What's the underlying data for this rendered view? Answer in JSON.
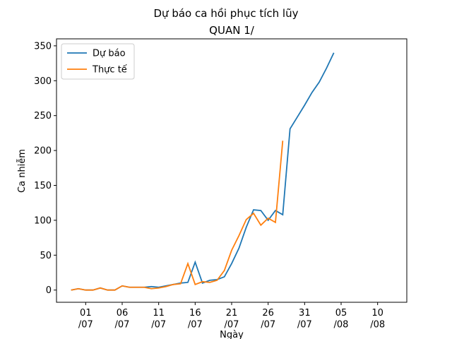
{
  "chart_data": {
    "type": "line",
    "title": "Dự báo ca hồi phục tích lũy",
    "subtitle": "QUAN 1/",
    "xlabel": "Ngày",
    "ylabel": "Ca nhiễm",
    "legend": "upper left",
    "xlim": [
      "27/06",
      "14/08"
    ],
    "ylim": [
      -17.5,
      360
    ],
    "yticks": [
      0,
      50,
      100,
      150,
      200,
      250,
      300,
      350
    ],
    "xticks": [
      {
        "value": "01/07",
        "label": "01\n/07"
      },
      {
        "value": "06/07",
        "label": "06\n/07"
      },
      {
        "value": "11/07",
        "label": "11\n/07"
      },
      {
        "value": "16/07",
        "label": "16\n/07"
      },
      {
        "value": "21/07",
        "label": "21\n/07"
      },
      {
        "value": "26/07",
        "label": "26\n/07"
      },
      {
        "value": "31/07",
        "label": "31\n/07"
      },
      {
        "value": "05/08",
        "label": "05\n/08"
      },
      {
        "value": "10/08",
        "label": "10\n/08"
      }
    ],
    "series": [
      {
        "name": "Dự báo",
        "color": "#1f77b4",
        "x": [
          "29/06",
          "30/06",
          "01/07",
          "02/07",
          "03/07",
          "04/07",
          "05/07",
          "06/07",
          "07/07",
          "08/07",
          "09/07",
          "10/07",
          "11/07",
          "12/07",
          "13/07",
          "14/07",
          "15/07",
          "16/07",
          "17/07",
          "18/07",
          "19/07",
          "20/07",
          "21/07",
          "22/07",
          "23/07",
          "24/07",
          "25/07",
          "26/07",
          "27/07",
          "28/07",
          "29/07",
          "30/07",
          "31/07",
          "01/08",
          "02/08",
          "03/08",
          "04/08"
        ],
        "values": [
          0,
          2,
          0,
          0,
          3,
          0,
          0,
          6,
          4,
          4,
          4,
          5,
          4,
          6,
          8,
          10,
          11,
          40,
          10,
          14,
          15,
          19,
          38,
          60,
          90,
          115,
          114,
          100,
          114,
          108,
          231,
          248,
          265,
          283,
          298,
          318,
          340
        ]
      },
      {
        "name": "Thực tế",
        "color": "#ff7f0e",
        "x": [
          "29/06",
          "30/06",
          "01/07",
          "02/07",
          "03/07",
          "04/07",
          "05/07",
          "06/07",
          "07/07",
          "08/07",
          "09/07",
          "10/07",
          "11/07",
          "12/07",
          "13/07",
          "14/07",
          "15/07",
          "16/07",
          "17/07",
          "18/07",
          "19/07",
          "20/07",
          "21/07",
          "22/07",
          "23/07",
          "24/07",
          "25/07",
          "26/07",
          "27/07",
          "28/07"
        ],
        "values": [
          0,
          2,
          0,
          0,
          3,
          0,
          0,
          6,
          4,
          4,
          4,
          2,
          3,
          5,
          8,
          9,
          38,
          8,
          12,
          11,
          14,
          28,
          57,
          78,
          101,
          110,
          93,
          103,
          97,
          214
        ]
      }
    ]
  }
}
